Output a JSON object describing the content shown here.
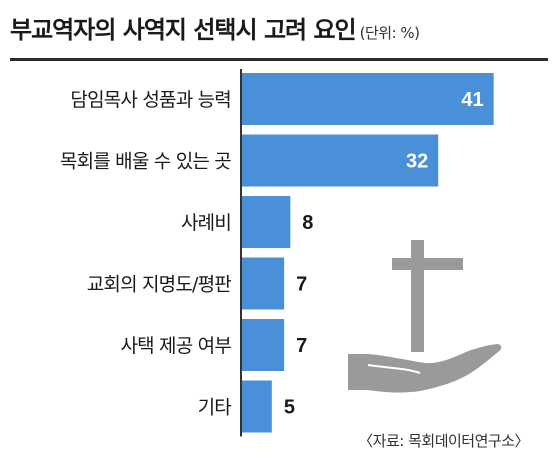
{
  "title": "부교역자의 사역지 선택시 고려 요인",
  "unit": "(단위: %)",
  "source": "〈자료: 목회데이터연구소〉",
  "colors": {
    "bar": "#4a90d9",
    "bar_stroke": "#3b7fc8",
    "axis": "#333333",
    "label_inside": "#ffffff",
    "label_outside": "#1a1a1a",
    "illustration": "#9a9a9a"
  },
  "illustration": "cross-on-hand-icon",
  "chart_data": {
    "type": "bar",
    "orientation": "horizontal",
    "categories": [
      "담임목사 성품과 능력",
      "목회를 배울 수 있는 곳",
      "사례비",
      "교회의 지명도/평판",
      "사택 제공 여부",
      "기타"
    ],
    "values": [
      41,
      32,
      8,
      7,
      7,
      5
    ],
    "data_labels": [
      "41",
      "32",
      "8",
      "7",
      "7",
      "5"
    ],
    "xlim": [
      0,
      43
    ],
    "grid": false,
    "legend": "none"
  }
}
